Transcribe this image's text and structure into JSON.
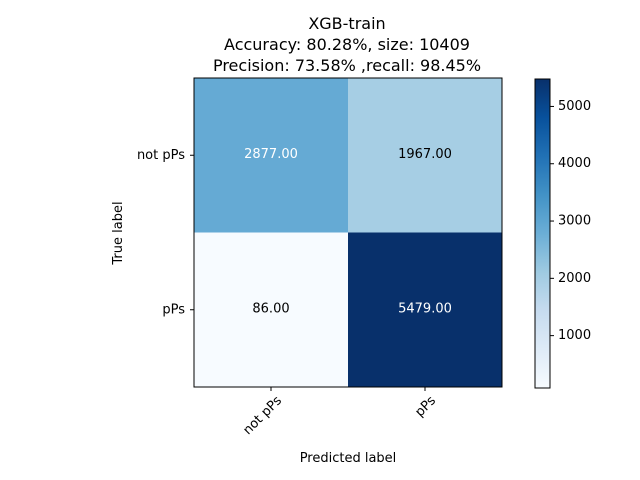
{
  "chart_data": {
    "type": "heatmap",
    "title_lines": [
      "XGB-train",
      "Accuracy: 80.28%, size: 10409",
      "Precision: 73.58% ,recall: 98.45%"
    ],
    "xlabel": "Predicted label",
    "ylabel": "True label",
    "x_categories": [
      "not pPs",
      "pPs"
    ],
    "y_categories": [
      "not pPs",
      "pPs"
    ],
    "values": [
      [
        2877,
        1967
      ],
      [
        86,
        5479
      ]
    ],
    "cell_labels": [
      [
        "2877.00",
        "1967.00"
      ],
      [
        "86.00",
        "5479.00"
      ]
    ],
    "colormap": "Blues",
    "color_range": [
      86,
      5479
    ],
    "colorbar_ticks": [
      "1000",
      "2000",
      "3000",
      "4000",
      "5000"
    ],
    "grid": false
  }
}
